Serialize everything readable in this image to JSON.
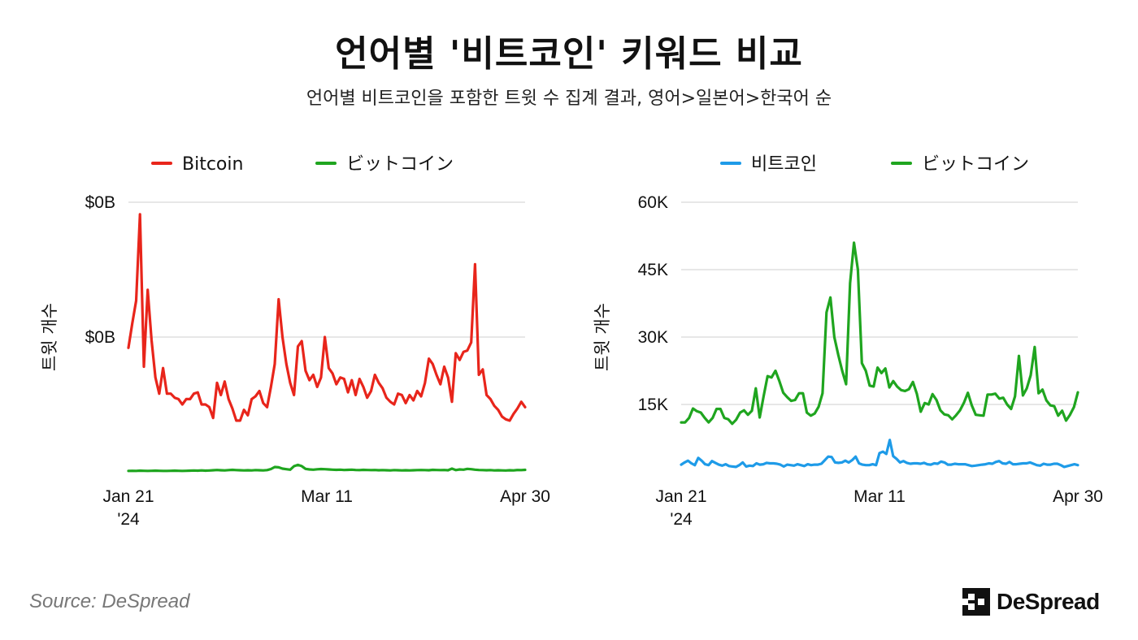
{
  "header": {
    "title": "언어별 '비트코인' 키워드 비교",
    "subtitle": "언어별 비트코인을 포함한 트윗 수 집계 결과, 영어>일본어>한국어 순"
  },
  "footer": {
    "source": "Source: DeSpread",
    "brand": "DeSpread"
  },
  "colors": {
    "bitcoin": "#e8251b",
    "japanese": "#1fa51f",
    "korean": "#1e9be8",
    "grid": "#cfcfcf"
  },
  "chart_data": [
    {
      "type": "line",
      "ylabel": "트윗 개수",
      "ylim": [
        0,
        2
      ],
      "y_ticks": [
        {
          "value": 1,
          "label": "$0B"
        },
        {
          "value": 2,
          "label": "$0B"
        }
      ],
      "x_ticks": [
        {
          "value": "2024-01-21",
          "label": "Jan 21",
          "sublabel": "'24"
        },
        {
          "value": "2024-03-11",
          "label": "Mar 11"
        },
        {
          "value": "2024-04-30",
          "label": "Apr 30"
        }
      ],
      "x_start": "2024-01-21",
      "grid": true,
      "legend": "top",
      "series": [
        {
          "name": "Bitcoin",
          "color": "#e8251b",
          "values": [
            0.92,
            1.1,
            1.27,
            1.91,
            0.78,
            1.35,
            0.98,
            0.7,
            0.58,
            0.77,
            0.58,
            0.58,
            0.55,
            0.54,
            0.5,
            0.54,
            0.54,
            0.58,
            0.59,
            0.5,
            0.5,
            0.48,
            0.4,
            0.66,
            0.57,
            0.67,
            0.54,
            0.47,
            0.38,
            0.38,
            0.46,
            0.42,
            0.54,
            0.56,
            0.6,
            0.51,
            0.48,
            0.63,
            0.8,
            1.28,
            1.0,
            0.8,
            0.66,
            0.57,
            0.93,
            0.97,
            0.75,
            0.68,
            0.72,
            0.63,
            0.7,
            1.0,
            0.77,
            0.73,
            0.65,
            0.7,
            0.69,
            0.59,
            0.68,
            0.57,
            0.69,
            0.63,
            0.55,
            0.6,
            0.72,
            0.66,
            0.62,
            0.55,
            0.52,
            0.5,
            0.58,
            0.57,
            0.51,
            0.57,
            0.53,
            0.6,
            0.56,
            0.66,
            0.84,
            0.8,
            0.72,
            0.65,
            0.78,
            0.7,
            0.52,
            0.88,
            0.83,
            0.89,
            0.9,
            0.96,
            1.54,
            0.72,
            0.76,
            0.57,
            0.54,
            0.49,
            0.46,
            0.41,
            0.39,
            0.38,
            0.43,
            0.47,
            0.52,
            0.48
          ]
        },
        {
          "name": "ビットコイン",
          "color": "#1fa51f",
          "values": [
            0.007,
            0.008,
            0.007,
            0.009,
            0.008,
            0.007,
            0.008,
            0.009,
            0.008,
            0.007,
            0.007,
            0.008,
            0.009,
            0.008,
            0.007,
            0.008,
            0.009,
            0.01,
            0.009,
            0.011,
            0.009,
            0.01,
            0.012,
            0.014,
            0.012,
            0.011,
            0.013,
            0.015,
            0.013,
            0.012,
            0.011,
            0.012,
            0.011,
            0.013,
            0.012,
            0.011,
            0.013,
            0.021,
            0.036,
            0.034,
            0.024,
            0.02,
            0.016,
            0.042,
            0.052,
            0.043,
            0.022,
            0.018,
            0.016,
            0.019,
            0.021,
            0.02,
            0.018,
            0.016,
            0.015,
            0.016,
            0.014,
            0.015,
            0.016,
            0.014,
            0.013,
            0.015,
            0.014,
            0.013,
            0.014,
            0.012,
            0.013,
            0.012,
            0.011,
            0.013,
            0.012,
            0.011,
            0.012,
            0.011,
            0.012,
            0.013,
            0.014,
            0.013,
            0.012,
            0.015,
            0.014,
            0.013,
            0.014,
            0.012,
            0.024,
            0.013,
            0.018,
            0.016,
            0.022,
            0.02,
            0.016,
            0.014,
            0.013,
            0.012,
            0.013,
            0.011,
            0.012,
            0.011,
            0.01,
            0.012,
            0.011,
            0.014,
            0.013,
            0.015
          ]
        }
      ]
    },
    {
      "type": "line",
      "ylabel": "트윗 개수",
      "ylim": [
        0,
        60000
      ],
      "y_ticks": [
        {
          "value": 15000,
          "label": "15K"
        },
        {
          "value": 30000,
          "label": "30K"
        },
        {
          "value": 45000,
          "label": "45K"
        },
        {
          "value": 60000,
          "label": "60K"
        }
      ],
      "x_ticks": [
        {
          "value": "2024-01-21",
          "label": "Jan 21",
          "sublabel": "'24"
        },
        {
          "value": "2024-03-11",
          "label": "Mar 11"
        },
        {
          "value": "2024-04-30",
          "label": "Apr 30"
        }
      ],
      "x_start": "2024-01-21",
      "grid": true,
      "legend": "top",
      "series": [
        {
          "name": "비트코인",
          "color": "#1e9be8",
          "values": [
            1600,
            2100,
            2500,
            1900,
            1500,
            3100,
            2500,
            1700,
            1500,
            2400,
            2000,
            1600,
            1400,
            1700,
            1300,
            1200,
            1100,
            1500,
            2100,
            1200,
            1400,
            1300,
            1900,
            1600,
            1700,
            2000,
            1900,
            1900,
            1800,
            1600,
            1200,
            1600,
            1500,
            1400,
            1700,
            1500,
            1300,
            1700,
            1500,
            1600,
            1600,
            1800,
            2600,
            3400,
            3300,
            2100,
            2000,
            2100,
            2500,
            2100,
            2600,
            3400,
            1900,
            1600,
            1500,
            1500,
            1700,
            1500,
            4200,
            4500,
            4000,
            7100,
            3500,
            2900,
            2100,
            2400,
            2000,
            1800,
            1900,
            1900,
            1800,
            2000,
            1700,
            1600,
            1900,
            1800,
            2300,
            2100,
            1600,
            1600,
            1800,
            1700,
            1700,
            1700,
            1500,
            1300,
            1400,
            1500,
            1600,
            1700,
            1900,
            1800,
            2200,
            2400,
            1900,
            1800,
            2200,
            1700,
            1700,
            1800,
            1900,
            1900,
            2100,
            1800,
            1500,
            1400,
            1800,
            1600,
            1600,
            1800,
            1800,
            1500,
            1100,
            1300,
            1500,
            1700,
            1500
          ]
        },
        {
          "name": "ビットコイン",
          "color": "#1fa51f",
          "values": [
            11000,
            11000,
            12000,
            14100,
            13500,
            13200,
            12000,
            11000,
            12000,
            14000,
            14000,
            12000,
            11700,
            10700,
            11600,
            13200,
            13700,
            12700,
            13600,
            18600,
            12100,
            16900,
            21300,
            21000,
            22500,
            20200,
            17600,
            16600,
            15800,
            16000,
            17500,
            17500,
            13200,
            12500,
            13000,
            14500,
            17500,
            35500,
            38800,
            30000,
            26000,
            22500,
            19500,
            42000,
            51000,
            45000,
            24200,
            22500,
            19200,
            19000,
            23200,
            22000,
            23000,
            18800,
            20200,
            19000,
            18200,
            18000,
            18400,
            20000,
            17400,
            13400,
            15300,
            15000,
            17300,
            16000,
            13700,
            12800,
            12600,
            11700,
            12600,
            13700,
            15400,
            17600,
            14800,
            12700,
            12600,
            12500,
            17200,
            17200,
            17400,
            16300,
            16500,
            15000,
            14000,
            16800,
            25800,
            17000,
            18600,
            21500,
            27800,
            17500,
            18300,
            15900,
            14800,
            14600,
            12500,
            13600,
            11400,
            12700,
            14400,
            17700
          ]
        }
      ]
    }
  ]
}
